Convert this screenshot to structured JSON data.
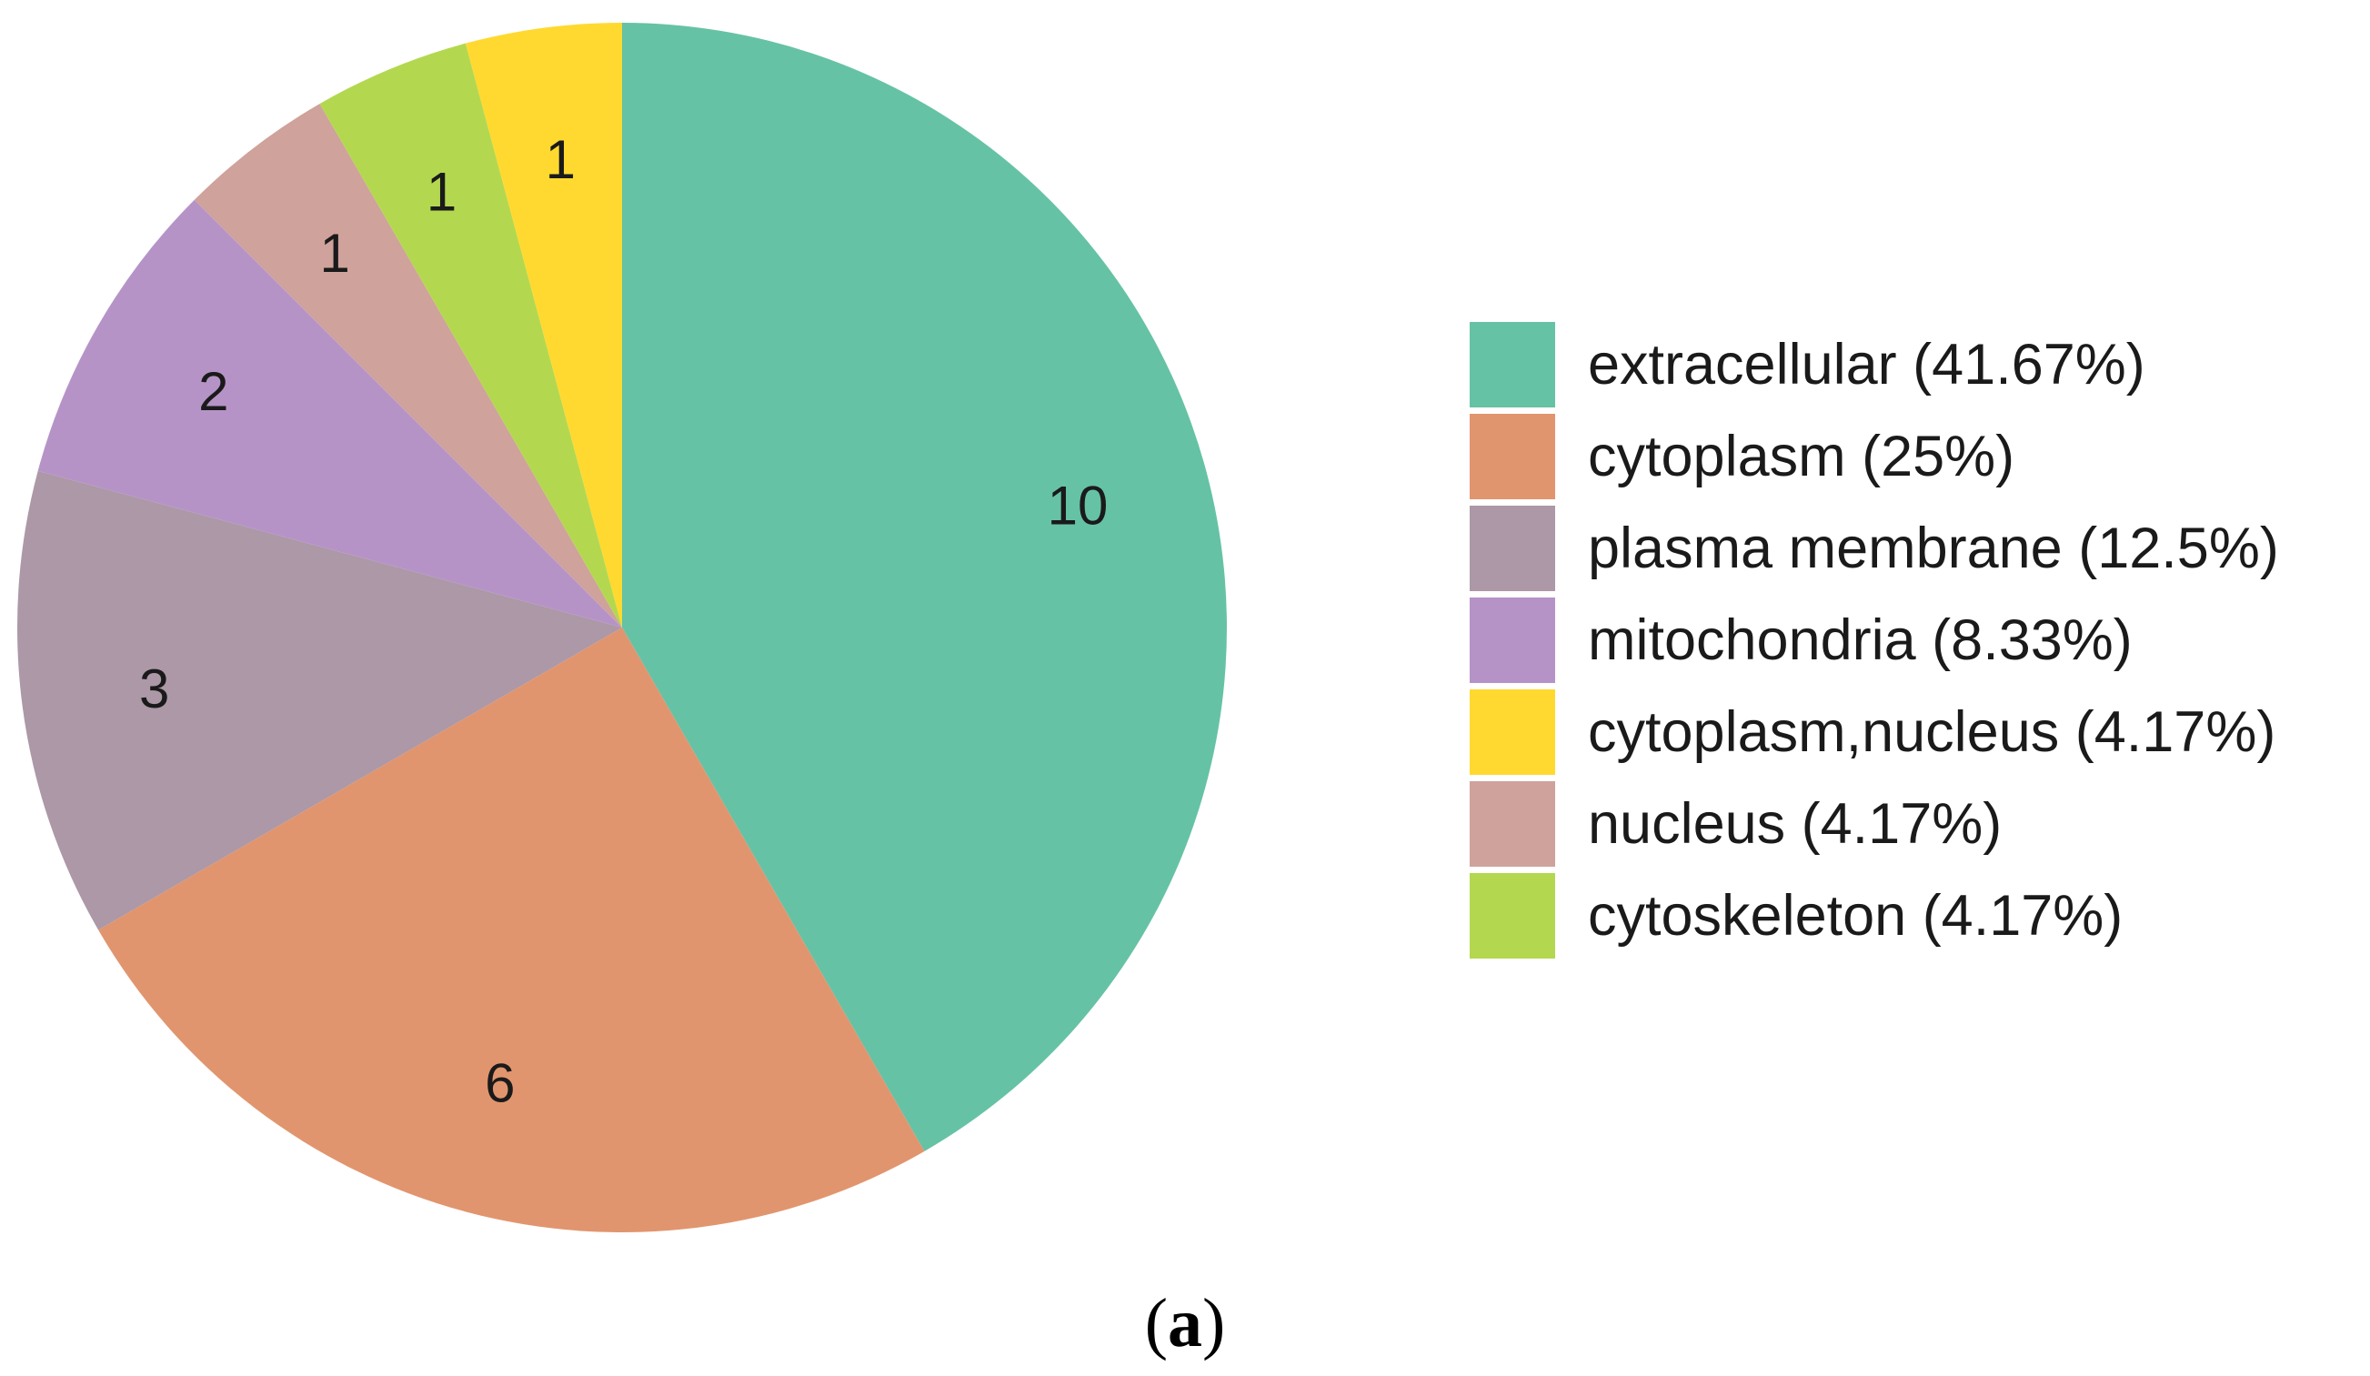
{
  "chart_data": {
    "type": "pie",
    "start_angle_deg": 0,
    "direction": "clockwise",
    "slices": [
      {
        "label": "extracellular",
        "value": 10,
        "percent": "41.67%",
        "color": "#66C2A5"
      },
      {
        "label": "cytoplasm",
        "value": 6,
        "percent": "25%",
        "color": "#E1956E"
      },
      {
        "label": "plasma membrane",
        "value": 3,
        "percent": "12.5%",
        "color": "#AC98A6"
      },
      {
        "label": "mitochondria",
        "value": 2,
        "percent": "8.33%",
        "color": "#B693C7"
      },
      {
        "label": "nucleus",
        "value": 1,
        "percent": "4.17%",
        "color": "#CFA29B"
      },
      {
        "label": "cytoskeleton",
        "value": 1,
        "percent": "4.17%",
        "color": "#B3D84F"
      },
      {
        "label": "cytoplasm,nucleus",
        "value": 1,
        "percent": "4.17%",
        "color": "#FFD92F"
      }
    ],
    "legend": {
      "placement": "right",
      "entries": [
        {
          "text": "extracellular (41.67%)",
          "color": "#66C2A5"
        },
        {
          "text": "cytoplasm (25%)",
          "color": "#E1956E"
        },
        {
          "text": "plasma membrane (12.5%)",
          "color": "#AC98A6"
        },
        {
          "text": "mitochondria (8.33%)",
          "color": "#B693C7"
        },
        {
          "text": "cytoplasm,nucleus (4.17%)",
          "color": "#FFD92F"
        },
        {
          "text": "nucleus (4.17%)",
          "color": "#CFA29B"
        },
        {
          "text": "cytoskeleton (4.17%)",
          "color": "#B3D84F"
        }
      ]
    }
  },
  "caption": {
    "open": "(",
    "letter": "a",
    "close": ")"
  }
}
